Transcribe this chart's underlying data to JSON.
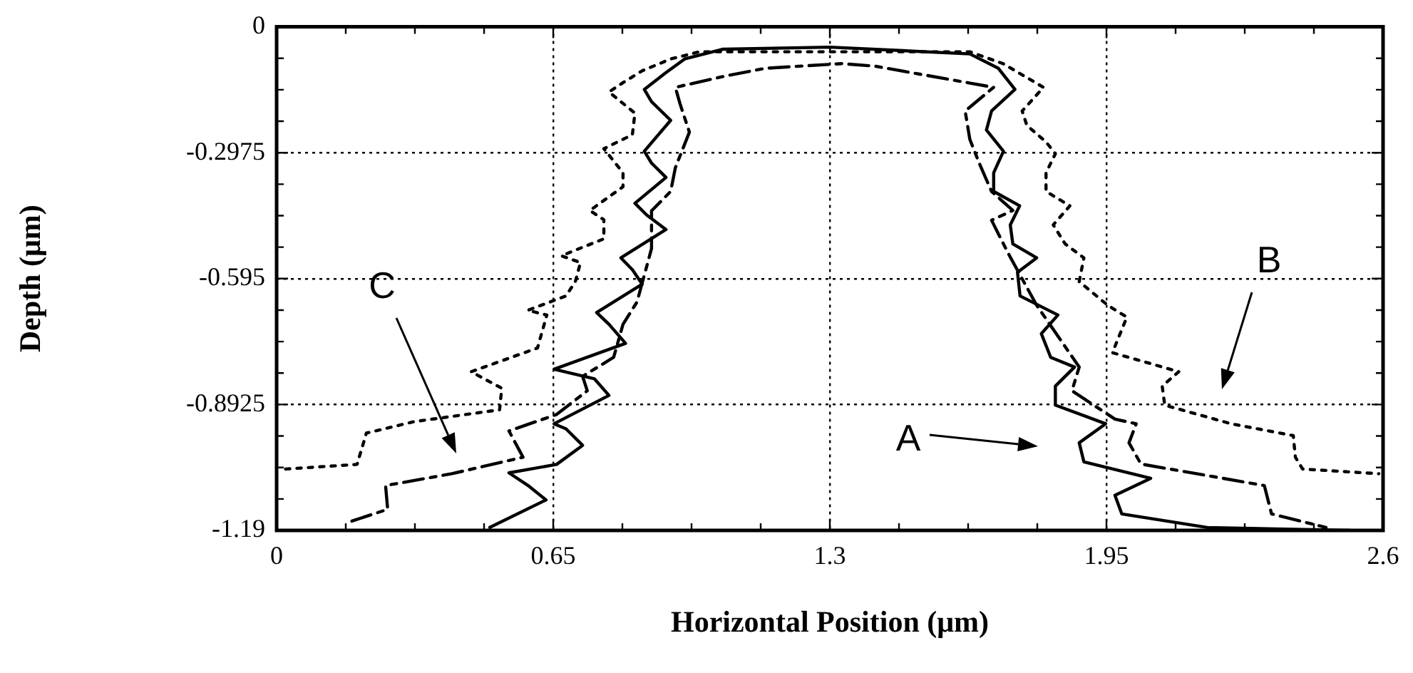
{
  "chart_data": {
    "type": "line",
    "xlabel": "Horizontal Position (μm)",
    "ylabel": "Depth (μm)",
    "xlim": [
      0,
      2.6
    ],
    "ylim": [
      -1.19,
      0
    ],
    "xticks": [
      0,
      {
        "value": 0.1625,
        "label": null
      },
      {
        "value": 0.325,
        "label": null
      },
      {
        "value": 0.4875,
        "label": null
      },
      0.65,
      {
        "value": 0.8125,
        "label": null
      },
      {
        "value": 0.975,
        "label": null
      },
      {
        "value": 1.1375,
        "label": null
      },
      1.3,
      {
        "value": 1.4625,
        "label": null
      },
      {
        "value": 1.625,
        "label": null
      },
      {
        "value": 1.7875,
        "label": null
      },
      1.95,
      {
        "value": 2.1125,
        "label": null
      },
      {
        "value": 2.275,
        "label": null
      },
      {
        "value": 2.4375,
        "label": null
      },
      2.6
    ],
    "yticks": [
      -1.19,
      {
        "value": -1.115625,
        "label": null
      },
      {
        "value": -1.04125,
        "label": null
      },
      {
        "value": -0.966875,
        "label": null
      },
      -0.8925,
      {
        "value": -0.818125,
        "label": null
      },
      {
        "value": -0.74375,
        "label": null
      },
      {
        "value": -0.669375,
        "label": null
      },
      -0.595,
      {
        "value": -0.520625,
        "label": null
      },
      {
        "value": -0.44625,
        "label": null
      },
      {
        "value": -0.371875,
        "label": null
      },
      -0.2975,
      {
        "value": -0.223125,
        "label": null
      },
      {
        "value": -0.14875,
        "label": null
      },
      {
        "value": -0.074375,
        "label": null
      },
      0
    ],
    "grid": true,
    "legend": false,
    "marker": "none",
    "series": [
      {
        "color": "#000000",
        "line_style": "solid",
        "x": [
          0.501,
          0.633,
          0.591,
          0.546,
          0.658,
          0.719,
          0.68,
          0.652,
          0.781,
          0.747,
          0.652,
          0.82,
          0.781,
          0.752,
          0.859,
          0.836,
          0.809,
          0.915,
          0.87,
          0.842,
          0.915,
          0.881,
          0.864,
          0.926,
          0.881,
          0.864,
          0.914,
          0.959,
          1.048,
          1.3,
          1.629,
          1.696,
          1.735,
          1.68,
          1.668,
          1.708,
          1.685,
          1.685,
          1.746,
          1.724,
          1.73,
          1.786,
          1.741,
          1.747,
          1.836,
          1.797,
          1.819,
          1.875,
          1.83,
          1.83,
          1.948,
          1.886,
          1.897,
          2.054,
          1.97,
          1.986,
          2.187,
          2.523
        ],
        "values": [
          -1.183,
          -1.118,
          -1.084,
          -1.054,
          -1.034,
          -0.989,
          -0.95,
          -0.938,
          -0.871,
          -0.832,
          -0.809,
          -0.748,
          -0.703,
          -0.675,
          -0.608,
          -0.574,
          -0.546,
          -0.479,
          -0.445,
          -0.417,
          -0.356,
          -0.322,
          -0.294,
          -0.221,
          -0.177,
          -0.148,
          -0.109,
          -0.076,
          -0.053,
          -0.048,
          -0.064,
          -0.098,
          -0.148,
          -0.199,
          -0.244,
          -0.294,
          -0.345,
          -0.389,
          -0.423,
          -0.468,
          -0.513,
          -0.546,
          -0.58,
          -0.636,
          -0.681,
          -0.725,
          -0.781,
          -0.804,
          -0.849,
          -0.894,
          -0.938,
          -0.983,
          -1.028,
          -1.067,
          -1.107,
          -1.151,
          -1.183,
          -1.19
        ]
      },
      {
        "color": "#000000",
        "line_style": "dotted",
        "x": [
          0.021,
          0.189,
          0.211,
          0.323,
          0.524,
          0.529,
          0.457,
          0.613,
          0.635,
          0.59,
          0.68,
          0.702,
          0.714,
          0.669,
          0.769,
          0.769,
          0.736,
          0.814,
          0.814,
          0.769,
          0.836,
          0.842,
          0.781,
          0.814,
          0.859,
          0.926,
          0.993,
          1.629,
          1.707,
          1.802,
          1.752,
          1.763,
          1.808,
          1.83,
          1.808,
          1.808,
          1.864,
          1.825,
          1.853,
          1.897,
          1.886,
          1.953,
          1.998,
          1.964,
          2.12,
          2.081,
          2.087,
          2.243,
          2.389,
          2.394,
          2.411,
          2.59
        ],
        "values": [
          -1.045,
          -1.034,
          -0.96,
          -0.933,
          -0.905,
          -0.854,
          -0.815,
          -0.759,
          -0.681,
          -0.67,
          -0.636,
          -0.602,
          -0.557,
          -0.541,
          -0.501,
          -0.456,
          -0.434,
          -0.378,
          -0.345,
          -0.288,
          -0.255,
          -0.204,
          -0.154,
          -0.132,
          -0.104,
          -0.076,
          -0.059,
          -0.059,
          -0.087,
          -0.143,
          -0.199,
          -0.233,
          -0.272,
          -0.3,
          -0.345,
          -0.389,
          -0.423,
          -0.468,
          -0.513,
          -0.546,
          -0.602,
          -0.658,
          -0.686,
          -0.77,
          -0.815,
          -0.849,
          -0.894,
          -0.938,
          -0.966,
          -1.017,
          -1.045,
          -1.056
        ]
      },
      {
        "color": "#000000",
        "line_style": "dashed",
        "x": [
          0.177,
          0.261,
          0.256,
          0.412,
          0.579,
          0.546,
          0.658,
          0.73,
          0.719,
          0.792,
          0.814,
          0.847,
          0.881,
          0.881,
          0.926,
          0.937,
          0.97,
          0.948,
          0.937,
          1.06,
          1.149,
          1.328,
          1.406,
          1.59,
          1.685,
          1.618,
          1.629,
          1.651,
          1.68,
          1.73,
          1.68,
          1.719,
          1.786,
          1.886,
          1.869,
          1.97,
          2.02,
          2.003,
          2.031,
          2.321,
          2.338,
          2.466
        ],
        "values": [
          -1.168,
          -1.14,
          -1.084,
          -1.056,
          -1.017,
          -0.955,
          -0.916,
          -0.86,
          -0.826,
          -0.781,
          -0.703,
          -0.65,
          -0.524,
          -0.435,
          -0.389,
          -0.333,
          -0.249,
          -0.182,
          -0.143,
          -0.115,
          -0.098,
          -0.087,
          -0.093,
          -0.126,
          -0.143,
          -0.199,
          -0.266,
          -0.322,
          -0.389,
          -0.434,
          -0.457,
          -0.535,
          -0.658,
          -0.804,
          -0.86,
          -0.927,
          -0.938,
          -0.983,
          -1.033,
          -1.084,
          -1.151,
          -1.183
        ]
      }
    ],
    "annotations": [
      "C",
      "A",
      "B"
    ]
  }
}
